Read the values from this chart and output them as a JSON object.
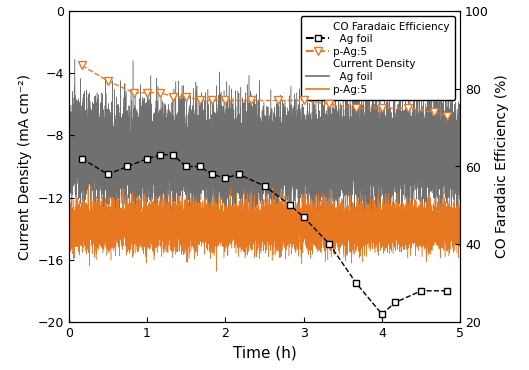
{
  "xlabel": "Time (h)",
  "ylabel_left": "Current Density (mA cm⁻²)",
  "ylabel_right": "CO Faradaic Efficiency (%)",
  "xlim": [
    0,
    5
  ],
  "ylim_left": [
    -20,
    0
  ],
  "ylim_right": [
    20,
    100
  ],
  "yticks_left": [
    0,
    -4,
    -8,
    -12,
    -16,
    -20
  ],
  "yticks_right": [
    20,
    40,
    60,
    80,
    100
  ],
  "xticks": [
    0,
    1,
    2,
    3,
    4,
    5
  ],
  "ag_foil_FE_x": [
    0.17,
    0.5,
    0.75,
    1.0,
    1.17,
    1.33,
    1.5,
    1.67,
    1.83,
    2.0,
    2.17,
    2.5,
    2.83,
    3.0,
    3.33,
    3.67,
    4.0,
    4.17,
    4.5,
    4.83
  ],
  "ag_foil_FE_y": [
    62,
    58,
    60,
    62,
    63,
    63,
    60,
    60,
    58,
    57,
    58,
    55,
    50,
    47,
    40,
    30,
    22,
    25,
    28,
    28
  ],
  "pag5_FE_x": [
    0.17,
    0.5,
    0.83,
    1.0,
    1.17,
    1.33,
    1.5,
    1.67,
    1.83,
    2.0,
    2.33,
    2.67,
    3.0,
    3.33,
    3.67,
    4.0,
    4.33,
    4.67,
    4.83
  ],
  "pag5_FE_y": [
    86,
    82,
    79,
    79,
    79,
    78,
    78,
    77,
    77,
    77,
    77,
    77,
    77,
    76,
    75,
    75,
    75,
    74,
    73
  ],
  "color_orange": "#E87722",
  "color_gray": "#707070",
  "color_black": "#000000",
  "noise_seed_ag": 42,
  "noise_seed_pag": 99,
  "noise_amp_ag": 1.5,
  "noise_amp_pag": 0.7,
  "n_noise_points": 18000,
  "pag_cd_mean": -13.8,
  "legend_title_fe": "CO Faradaic Efficiency",
  "legend_title_cd": "Current Density",
  "legend_ag_fe": "Ag foil",
  "legend_pag_fe": "p-Ag:5",
  "legend_ag_cd": "Ag foil",
  "legend_pag_cd": "p-Ag:5"
}
